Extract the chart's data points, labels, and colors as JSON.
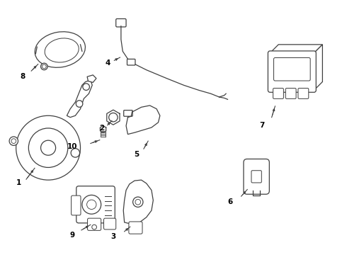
{
  "background_color": "#ffffff",
  "line_color": "#404040",
  "label_color": "#000000",
  "figsize": [
    4.9,
    3.6
  ],
  "dpi": 100,
  "xlim": [
    0,
    10
  ],
  "ylim": [
    0,
    7.5
  ]
}
